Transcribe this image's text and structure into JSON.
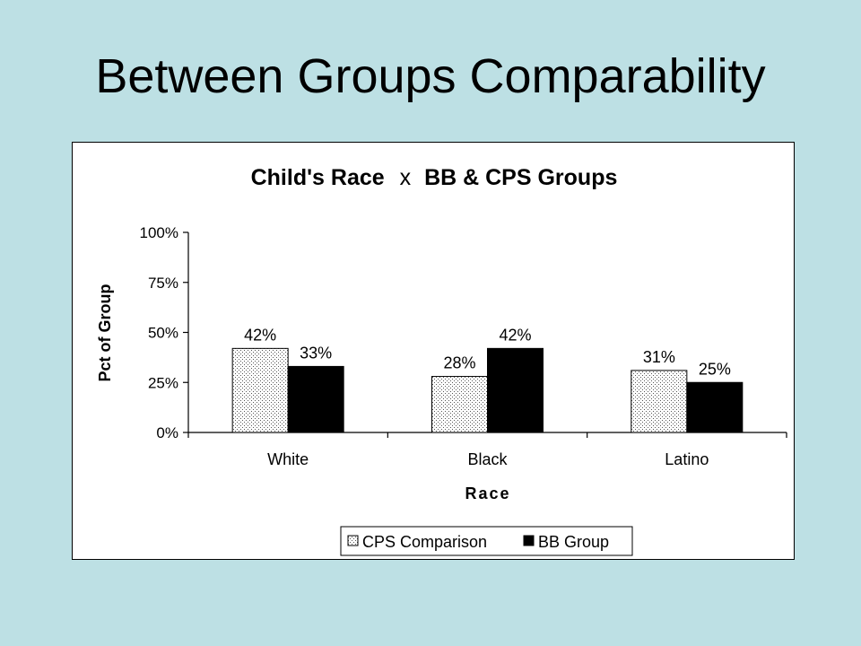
{
  "slide": {
    "title": "Between Groups Comparability"
  },
  "colors": {
    "background": "#bde0e4",
    "bb_group": "#000000",
    "cps_comparison": "#ffffff"
  },
  "chart_data": {
    "type": "bar",
    "title_main": "Child's Race",
    "title_x": "x",
    "title_rest": "BB & CPS Groups",
    "xlabel": "Race",
    "ylabel": "Pct of Group",
    "ylim": [
      0,
      100
    ],
    "yticks": [
      0,
      25,
      50,
      75,
      100
    ],
    "ytick_labels": [
      "0%",
      "25%",
      "50%",
      "75%",
      "100%"
    ],
    "categories": [
      "White",
      "Black",
      "Latino"
    ],
    "series": [
      {
        "name": "CPS Comparison",
        "values": [
          42,
          28,
          31
        ],
        "labels": [
          "42%",
          "28%",
          "31%"
        ],
        "fill": "dotted"
      },
      {
        "name": "BB Group",
        "values": [
          33,
          42,
          25
        ],
        "labels": [
          "33%",
          "42%",
          "25%"
        ],
        "fill": "solid"
      }
    ],
    "legend_position": "bottom",
    "grid": false
  }
}
